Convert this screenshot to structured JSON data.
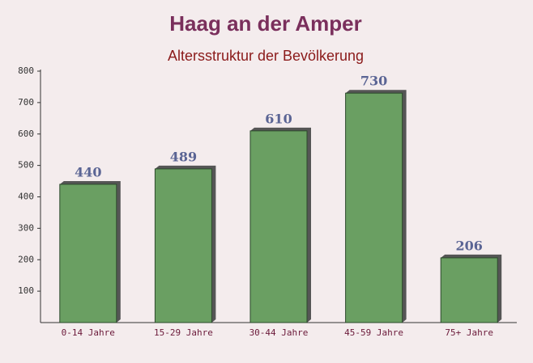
{
  "chart_data": {
    "type": "bar",
    "title": "Haag an der Amper",
    "subtitle": "Altersstruktur der Bevölkerung",
    "categories": [
      "0-14 Jahre",
      "15-29 Jahre",
      "30-44 Jahre",
      "45-59 Jahre",
      "75+ Jahre"
    ],
    "values": [
      440,
      489,
      610,
      730,
      206
    ],
    "color": "#6a9f62",
    "ylim": [
      0,
      800
    ],
    "yticks": [
      100,
      200,
      300,
      400,
      500,
      600,
      700,
      800
    ]
  }
}
